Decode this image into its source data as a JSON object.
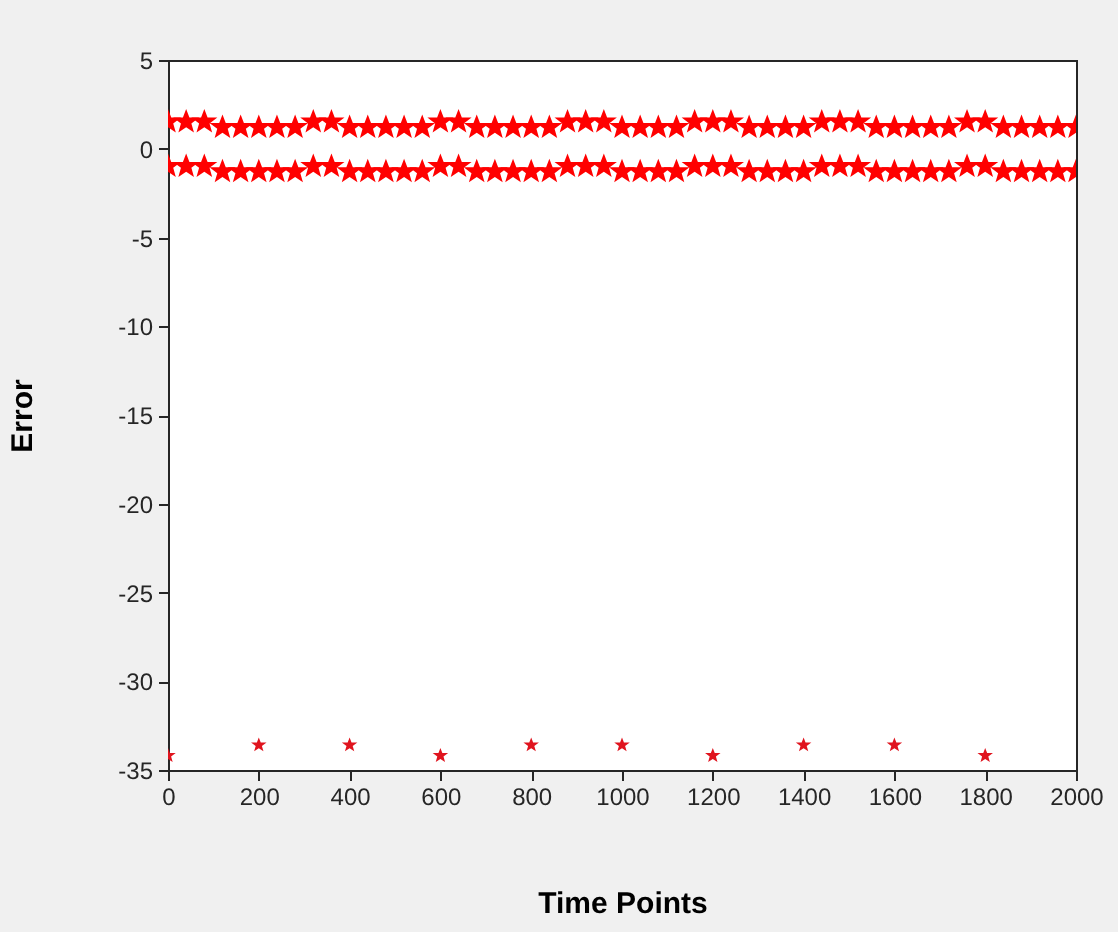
{
  "chart_data": {
    "type": "scatter",
    "xlabel": "Time Points",
    "ylabel": "Error",
    "xlim": [
      0,
      2000
    ],
    "xticks": [
      0,
      200,
      400,
      600,
      800,
      1000,
      1200,
      1400,
      1600,
      1800,
      2000
    ],
    "ylim": [
      -35,
      5
    ],
    "yticks": [
      -35,
      -30,
      -25,
      -20,
      -15,
      -10,
      -5,
      0,
      5
    ],
    "grid": false,
    "marker": "star",
    "series": [
      {
        "color": "#ff0000",
        "x": [
          0,
          40,
          80,
          120,
          160,
          200,
          240,
          280,
          320,
          360,
          400,
          440,
          480,
          520,
          560,
          600,
          640,
          680,
          720,
          760,
          800,
          840,
          880,
          920,
          960,
          1000,
          1040,
          1080,
          1120,
          1160,
          1200,
          1240,
          1280,
          1320,
          1360,
          1400,
          1440,
          1480,
          1520,
          1560,
          1600,
          1640,
          1680,
          1720,
          1760,
          1800,
          1840,
          1880,
          1920,
          1960,
          2000
        ],
        "values": [
          1.5,
          1.5,
          1.5,
          1.2,
          1.2,
          1.2,
          1.2,
          1.2,
          1.5,
          1.5,
          1.2,
          1.2,
          1.2,
          1.2,
          1.2,
          1.5,
          1.5,
          1.2,
          1.2,
          1.2,
          1.2,
          1.2,
          1.5,
          1.5,
          1.5,
          1.2,
          1.2,
          1.2,
          1.2,
          1.5,
          1.5,
          1.5,
          1.2,
          1.2,
          1.2,
          1.2,
          1.5,
          1.5,
          1.5,
          1.2,
          1.2,
          1.2,
          1.2,
          1.2,
          1.5,
          1.5,
          1.2,
          1.2,
          1.2,
          1.2,
          1.2
        ]
      },
      {
        "color": "#ff0000",
        "x": [
          0,
          40,
          80,
          120,
          160,
          200,
          240,
          280,
          320,
          360,
          400,
          440,
          480,
          520,
          560,
          600,
          640,
          680,
          720,
          760,
          800,
          840,
          880,
          920,
          960,
          1000,
          1040,
          1080,
          1120,
          1160,
          1200,
          1240,
          1280,
          1320,
          1360,
          1400,
          1440,
          1480,
          1520,
          1560,
          1600,
          1640,
          1680,
          1720,
          1760,
          1800,
          1840,
          1880,
          1920,
          1960,
          2000
        ],
        "values": [
          -1.0,
          -1.0,
          -1.0,
          -1.3,
          -1.3,
          -1.3,
          -1.3,
          -1.3,
          -1.0,
          -1.0,
          -1.3,
          -1.3,
          -1.3,
          -1.3,
          -1.3,
          -1.0,
          -1.0,
          -1.3,
          -1.3,
          -1.3,
          -1.3,
          -1.3,
          -1.0,
          -1.0,
          -1.0,
          -1.3,
          -1.3,
          -1.3,
          -1.3,
          -1.0,
          -1.0,
          -1.0,
          -1.3,
          -1.3,
          -1.3,
          -1.3,
          -1.0,
          -1.0,
          -1.0,
          -1.3,
          -1.3,
          -1.3,
          -1.3,
          -1.3,
          -1.0,
          -1.0,
          -1.3,
          -1.3,
          -1.3,
          -1.3,
          -1.3
        ]
      },
      {
        "color": "#e0141e",
        "x": [
          0,
          200,
          400,
          600,
          800,
          1000,
          1200,
          1400,
          1600,
          1800
        ],
        "values": [
          -34.2,
          -33.6,
          -33.6,
          -34.2,
          -33.6,
          -33.6,
          -34.2,
          -33.6,
          -33.6,
          -34.2
        ]
      }
    ]
  }
}
